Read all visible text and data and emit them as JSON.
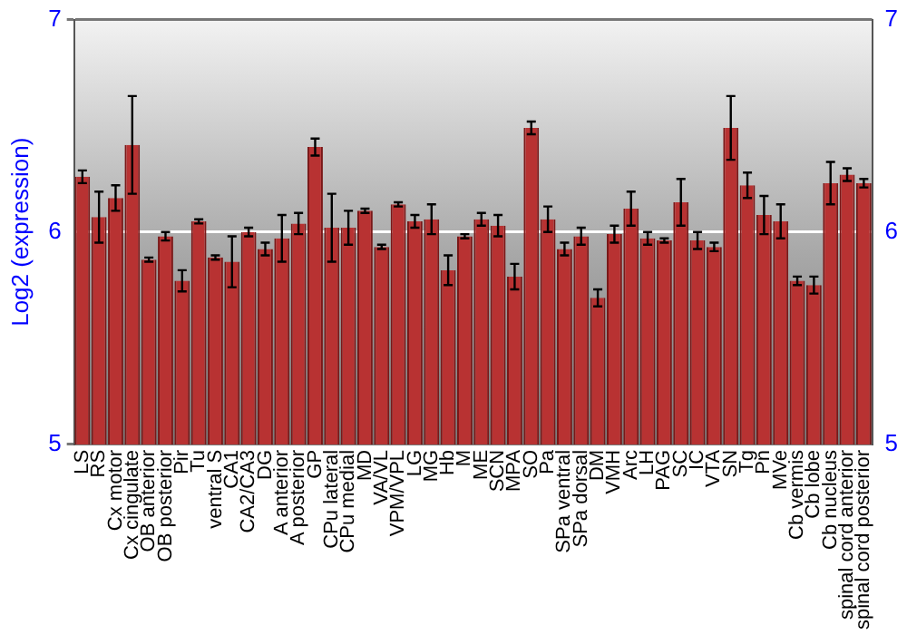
{
  "chart_data": {
    "type": "bar",
    "ylabel": "Log2 (expression)",
    "categories": [
      "LS",
      "RS",
      "Cx motor",
      "Cx cingulate",
      "OB anterior",
      "OB posterior",
      "Pir",
      "Tu",
      "ventral S",
      "CA1",
      "CA2/CA3",
      "DG",
      "A anterior",
      "A posterior",
      "GP",
      "CPu lateral",
      "CPu medial",
      "MD",
      "VA/VL",
      "VPM/VPL",
      "LG",
      "MG",
      "Hb",
      "M",
      "ME",
      "SCN",
      "MPA",
      "SO",
      "Pa",
      "SPa ventral",
      "SPa dorsal",
      "DM",
      "VMH",
      "Arc",
      "LH",
      "PAG",
      "SC",
      "IC",
      "VTA",
      "SN",
      "Tg",
      "Pn",
      "MVe",
      "Cb vermis",
      "Cb lobe",
      "Cb nucleus",
      "spinal cord anterior",
      "spinal cord posterior"
    ],
    "values": [
      6.26,
      6.07,
      6.16,
      6.41,
      5.87,
      5.98,
      5.77,
      6.05,
      5.88,
      5.86,
      6.0,
      5.92,
      5.97,
      6.04,
      6.4,
      6.02,
      6.02,
      6.1,
      5.93,
      6.13,
      6.05,
      6.06,
      5.82,
      5.98,
      6.06,
      6.03,
      5.79,
      6.49,
      6.06,
      5.92,
      5.98,
      5.69,
      5.99,
      6.11,
      5.97,
      5.96,
      6.14,
      5.96,
      5.93,
      6.49,
      6.22,
      6.08,
      6.05,
      5.77,
      5.75,
      6.23,
      6.27,
      6.23
    ],
    "errors": [
      0.03,
      0.12,
      0.06,
      0.23,
      0.01,
      0.02,
      0.05,
      0.01,
      0.01,
      0.12,
      0.02,
      0.03,
      0.11,
      0.05,
      0.04,
      0.16,
      0.08,
      0.01,
      0.01,
      0.01,
      0.03,
      0.07,
      0.07,
      0.01,
      0.03,
      0.05,
      0.06,
      0.03,
      0.06,
      0.03,
      0.04,
      0.04,
      0.04,
      0.08,
      0.03,
      0.01,
      0.11,
      0.04,
      0.02,
      0.15,
      0.06,
      0.09,
      0.08,
      0.02,
      0.04,
      0.1,
      0.03,
      0.02
    ],
    "color": "#b83232",
    "ylim": [
      5,
      7
    ],
    "yticks": [
      5,
      6,
      7
    ],
    "y2lim": [
      5,
      7
    ],
    "y2ticks": [
      5,
      6,
      7
    ],
    "grid": "y",
    "legend": false
  }
}
